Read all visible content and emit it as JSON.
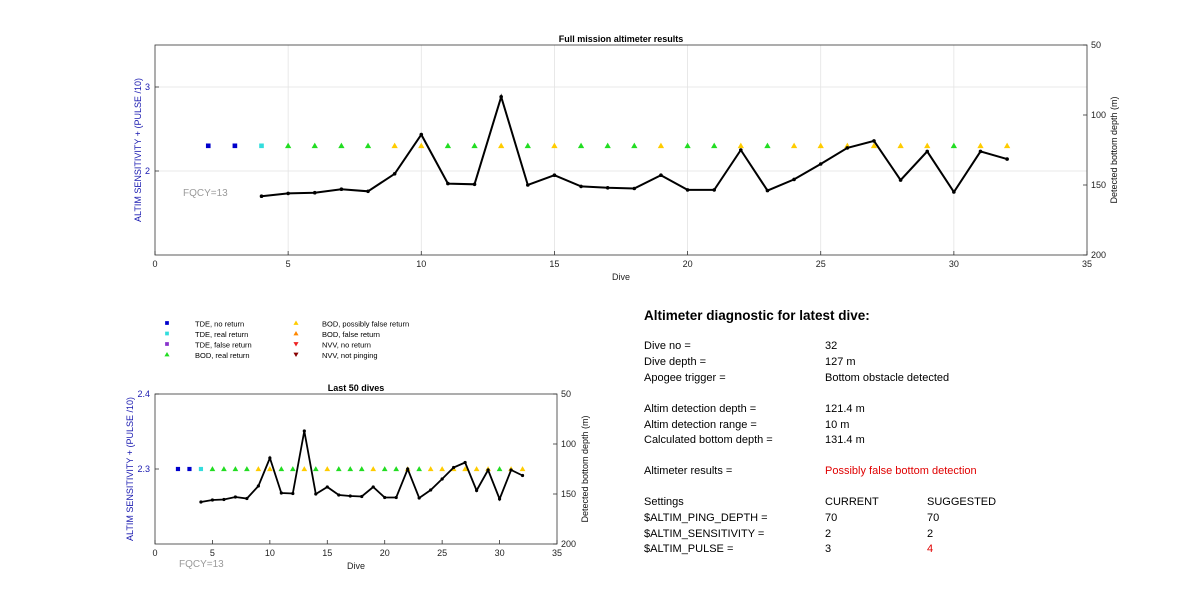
{
  "chart_data": [
    {
      "type": "line",
      "title": "Full mission altimeter results",
      "xlabel": "Dive",
      "ylabel": "ALTIM SENSITIVITY + (PULSE /10)",
      "ylabel_right": "Detected bottom depth (m)",
      "xlim": [
        0,
        35
      ],
      "ylim": [
        1,
        3.5
      ],
      "ylim_right": [
        50,
        200
      ],
      "right_axis_reversed": true,
      "xticks": [
        "0",
        "5",
        "10",
        "15",
        "20",
        "25",
        "30",
        "35"
      ],
      "yticks_left": [
        "2",
        "3"
      ],
      "yticks_right": [
        "50",
        "100",
        "150",
        "200"
      ],
      "grid": true,
      "annotation": "FQCY=13",
      "markers": [
        {
          "dive": 2,
          "type": "tde_no_return"
        },
        {
          "dive": 3,
          "type": "tde_no_return"
        },
        {
          "dive": 4,
          "type": "tde_real_return"
        },
        {
          "dive": 5,
          "type": "bod_real_return"
        },
        {
          "dive": 6,
          "type": "bod_real_return"
        },
        {
          "dive": 7,
          "type": "bod_real_return"
        },
        {
          "dive": 8,
          "type": "bod_real_return"
        },
        {
          "dive": 9,
          "type": "bod_possibly_false"
        },
        {
          "dive": 10,
          "type": "bod_possibly_false"
        },
        {
          "dive": 11,
          "type": "bod_real_return"
        },
        {
          "dive": 12,
          "type": "bod_real_return"
        },
        {
          "dive": 13,
          "type": "bod_possibly_false"
        },
        {
          "dive": 14,
          "type": "bod_real_return"
        },
        {
          "dive": 15,
          "type": "bod_possibly_false"
        },
        {
          "dive": 16,
          "type": "bod_real_return"
        },
        {
          "dive": 17,
          "type": "bod_real_return"
        },
        {
          "dive": 18,
          "type": "bod_real_return"
        },
        {
          "dive": 19,
          "type": "bod_possibly_false"
        },
        {
          "dive": 20,
          "type": "bod_real_return"
        },
        {
          "dive": 21,
          "type": "bod_real_return"
        },
        {
          "dive": 22,
          "type": "bod_possibly_false"
        },
        {
          "dive": 23,
          "type": "bod_real_return"
        },
        {
          "dive": 24,
          "type": "bod_possibly_false"
        },
        {
          "dive": 25,
          "type": "bod_possibly_false"
        },
        {
          "dive": 26,
          "type": "bod_possibly_false"
        },
        {
          "dive": 27,
          "type": "bod_possibly_false"
        },
        {
          "dive": 28,
          "type": "bod_possibly_false"
        },
        {
          "dive": 29,
          "type": "bod_possibly_false"
        },
        {
          "dive": 30,
          "type": "bod_real_return"
        },
        {
          "dive": 31,
          "type": "bod_possibly_false"
        },
        {
          "dive": 32,
          "type": "bod_possibly_false"
        }
      ],
      "marker_level": 2.3,
      "depth_series": {
        "x": [
          4,
          5,
          6,
          7,
          8,
          9,
          10,
          11,
          12,
          13,
          14,
          15,
          16,
          17,
          18,
          19,
          20,
          21,
          22,
          23,
          24,
          25,
          26,
          27,
          28,
          29,
          30,
          31,
          32
        ],
        "y": [
          158,
          156,
          155.5,
          153,
          154.5,
          142,
          114,
          149,
          149.5,
          87,
          150,
          143,
          151,
          152,
          152.5,
          143,
          153.5,
          153.5,
          125,
          154,
          146,
          135,
          123.5,
          118.5,
          146.5,
          126,
          155,
          126,
          131.5
        ]
      }
    },
    {
      "type": "line",
      "title": "Last 50 dives",
      "xlabel": "Dive",
      "ylabel": "ALTIM SENSITIVITY + (PULSE /10)",
      "ylabel_right": "Detected bottom depth (m)",
      "xlim": [
        0,
        35
      ],
      "ylim": [
        2.2,
        2.4
      ],
      "ylim_right": [
        50,
        200
      ],
      "right_axis_reversed": true,
      "xticks": [
        "0",
        "5",
        "10",
        "15",
        "20",
        "25",
        "30",
        "35"
      ],
      "yticks_left": [
        "2.3",
        "2.4"
      ],
      "yticks_right": [
        "50",
        "100",
        "150",
        "200"
      ],
      "grid": false,
      "annotation": "FQCY=13",
      "marker_level": 2.3,
      "depth_series": {
        "x": [
          4,
          5,
          6,
          7,
          8,
          9,
          10,
          11,
          12,
          13,
          14,
          15,
          16,
          17,
          18,
          19,
          20,
          21,
          22,
          23,
          24,
          25,
          26,
          27,
          28,
          29,
          30,
          31,
          32
        ],
        "y": [
          158,
          156,
          155.5,
          153,
          154.5,
          142,
          114,
          149,
          149.5,
          87,
          150,
          143,
          151,
          152,
          152.5,
          143,
          153.5,
          153.5,
          125,
          154,
          146,
          135,
          123.5,
          118.5,
          146.5,
          126,
          155,
          126,
          131.5
        ]
      }
    }
  ],
  "legend": {
    "left_column": [
      {
        "key": "tde_no_return",
        "label": "TDE, no return",
        "shape": "square",
        "color": "#0000cc"
      },
      {
        "key": "tde_real_return",
        "label": "TDE, real return",
        "shape": "square",
        "color": "#33dddd"
      },
      {
        "key": "tde_false_return",
        "label": "TDE, false return",
        "shape": "square",
        "color": "#8833cc"
      },
      {
        "key": "bod_real_return",
        "label": "BOD, real return",
        "shape": "triangle-up",
        "color": "#22dd22"
      }
    ],
    "right_column": [
      {
        "key": "bod_possibly_false",
        "label": "BOD, possibly false return",
        "shape": "triangle-up",
        "color": "#ffcc00"
      },
      {
        "key": "bod_false_return",
        "label": "BOD, false return",
        "shape": "triangle-up",
        "color": "#ff8800"
      },
      {
        "key": "nvv_no_return",
        "label": "NVV, no return",
        "shape": "triangle-down",
        "color": "#ee2222"
      },
      {
        "key": "nvv_not_pinging",
        "label": "NVV, not pinging",
        "shape": "triangle-down",
        "color": "#880000"
      }
    ]
  },
  "diagnostic": {
    "title": "Altimeter diagnostic for latest dive:",
    "dive_no_label": "Dive no =",
    "dive_no_value": "32",
    "dive_depth_label": "Dive depth =",
    "dive_depth_value": "127 m",
    "apogee_label": "Apogee trigger =",
    "apogee_value": "Bottom obstacle detected",
    "altim_det_depth_label": "Altim detection depth =",
    "altim_det_depth_value": "121.4 m",
    "altim_det_range_label": "Altim detection range =",
    "altim_det_range_value": "10 m",
    "calc_bottom_label": "Calculated bottom depth =",
    "calc_bottom_value": "131.4 m",
    "results_label": "Altimeter results =",
    "results_value": "Possibly false bottom detection",
    "settings_label": "Settings",
    "current_label": "CURRENT",
    "suggested_label": "SUGGESTED",
    "ping_depth_label": "$ALTIM_PING_DEPTH =",
    "ping_depth_current": "70",
    "ping_depth_suggested": "70",
    "sensitivity_label": "$ALTIM_SENSITIVITY =",
    "sensitivity_current": "2",
    "sensitivity_suggested": "2",
    "pulse_label": "$ALTIM_PULSE =",
    "pulse_current": "3",
    "pulse_suggested": "4",
    "alert_color": "#e00000"
  }
}
